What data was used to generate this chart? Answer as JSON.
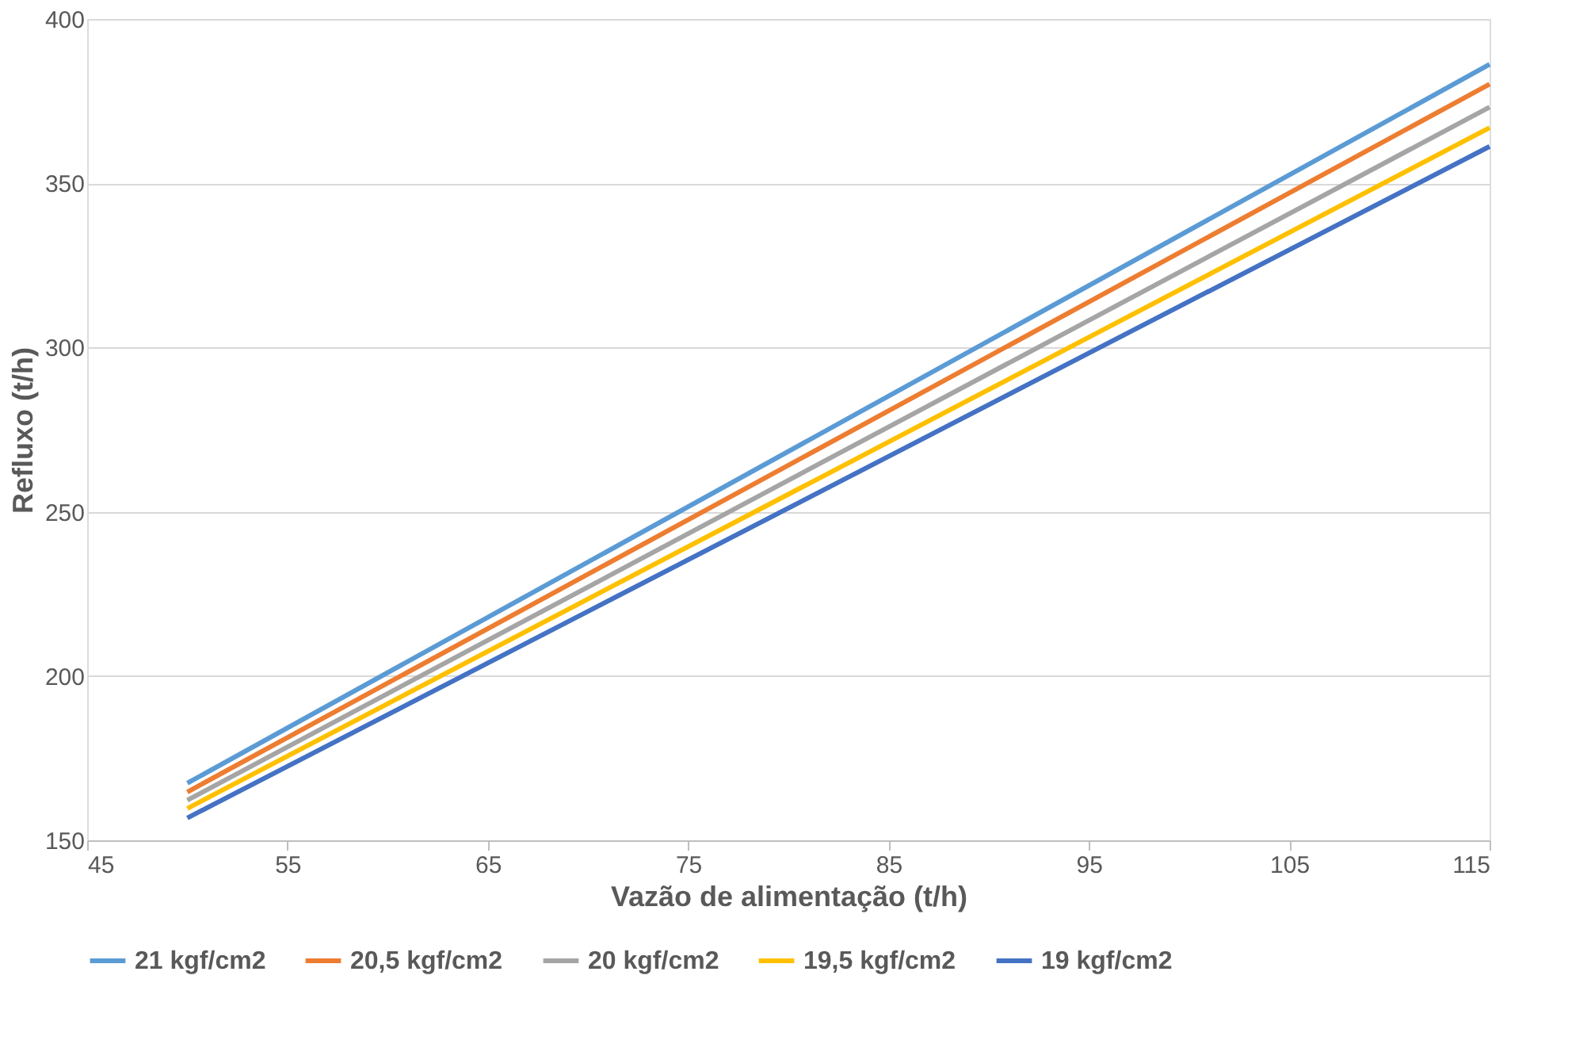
{
  "chart_data": {
    "type": "line",
    "xlabel": "Vazão de alimentação (t/h)",
    "ylabel": "Refluxo (t/h)",
    "x": [
      50,
      115
    ],
    "series": [
      {
        "name": "21 kgf/cm2",
        "color": "#5b9bd5",
        "values": [
          167.4,
          386.2
        ]
      },
      {
        "name": "20,5 kgf/cm2",
        "color": "#ed7d31",
        "values": [
          164.7,
          380.2
        ]
      },
      {
        "name": "20 kgf/cm2",
        "color": "#a5a5a5",
        "values": [
          162.2,
          373.2
        ]
      },
      {
        "name": "19,5 kgf/cm2",
        "color": "#ffc000",
        "values": [
          159.7,
          366.9
        ]
      },
      {
        "name": "19 kgf/cm2",
        "color": "#4472c4",
        "values": [
          156.8,
          361.2
        ]
      }
    ],
    "xlim": [
      45,
      115
    ],
    "xticks": [
      45,
      55,
      65,
      75,
      85,
      95,
      105,
      115
    ],
    "ylim": [
      150,
      400
    ],
    "yticks": [
      150,
      200,
      250,
      300,
      350,
      400
    ],
    "grid": "y",
    "legend": "bottom",
    "marker": "none",
    "line_style": "solid"
  }
}
